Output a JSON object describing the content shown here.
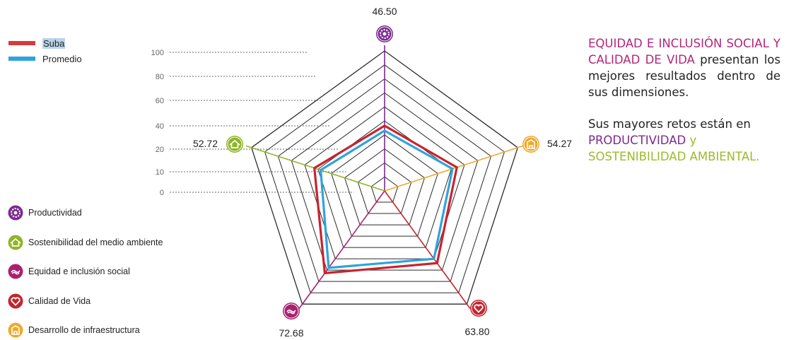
{
  "legend": {
    "series": [
      {
        "name": "Suba",
        "color": "#d63a3a"
      },
      {
        "name": "Promedio",
        "color": "#2fa3dc"
      }
    ],
    "dimensions": [
      {
        "label": "Productividad",
        "color": "#7b2a8e",
        "icon": "productividad-icon"
      },
      {
        "label": "Sostenibilidad del medio ambiente",
        "color": "#8fb525",
        "icon": "sostenibilidad-icon"
      },
      {
        "label": "Equidad e inclusión social",
        "color": "#a8216e",
        "icon": "equidad-icon"
      },
      {
        "label": "Calidad de Vida",
        "color": "#c0262d",
        "icon": "calidad-de-vida-icon"
      },
      {
        "label": "Desarrollo de infraestructura",
        "color": "#f0a92b",
        "icon": "infraestructura-icon"
      }
    ]
  },
  "text": {
    "p1_highlight": "EQUIDAD E INCLUSIÓN SOCIAL Y CALIDAD DE VIDA",
    "p1_rest": "presentan los mejores resultados dentro de sus dimensiones.",
    "p2_start": "Sus mayores retos están en",
    "p2_productividad": "PRODUCTIVIDAD",
    "p2_and": "y",
    "p2_sostenibilidad": "SOSTENIBILIDAD AMBIENTAL."
  },
  "chart_data": {
    "type": "radar",
    "scale_ticks": [
      "100",
      "80",
      "60",
      "40",
      "20",
      "10",
      "0"
    ],
    "axes": [
      {
        "key": "productividad",
        "value_label": "46.50",
        "color": "#7b2a8e"
      },
      {
        "key": "infraestructura",
        "value_label": "54.27",
        "color": "#f0a92b"
      },
      {
        "key": "calidad",
        "value_label": "63.80",
        "color": "#c0262d"
      },
      {
        "key": "equidad",
        "value_label": "72.68",
        "color": "#a8216e"
      },
      {
        "key": "sostenibilidad",
        "value_label": "52.72",
        "color": "#8fb525"
      }
    ],
    "series": [
      {
        "name": "Suba",
        "color": "#c8232f",
        "values": [
          46.5,
          54.27,
          63.8,
          72.68,
          52.72
        ]
      },
      {
        "name": "Promedio",
        "color": "#2fa3dc",
        "values": [
          43,
          51,
          60,
          68,
          48
        ]
      }
    ]
  }
}
